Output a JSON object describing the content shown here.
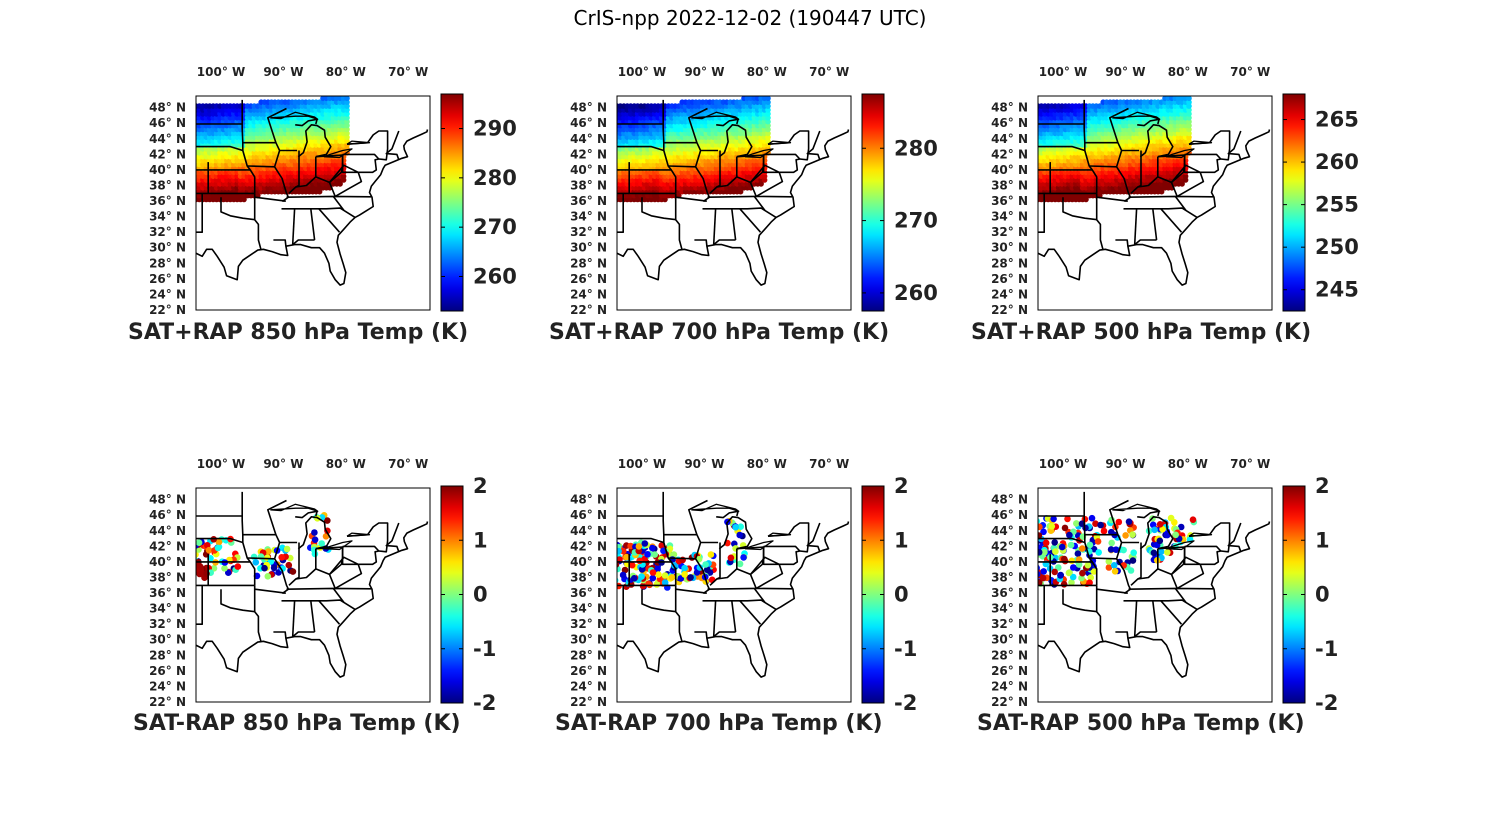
{
  "figure": {
    "title": "CrIS-npp 2022-12-02 (190447 UTC)"
  },
  "map_axes": {
    "lon_ticks": [
      "100° W",
      "90° W",
      "80° W",
      "70° W"
    ],
    "lon_values": [
      -100,
      -90,
      -80,
      -70
    ],
    "lat_ticks": [
      "48° N",
      "46° N",
      "44° N",
      "42° N",
      "40° N",
      "38° N",
      "36° N",
      "34° N",
      "32° N",
      "30° N",
      "28° N",
      "26° N",
      "24° N",
      "22° N"
    ],
    "lat_values": [
      48,
      46,
      44,
      42,
      40,
      38,
      36,
      34,
      32,
      30,
      28,
      26,
      24,
      22
    ],
    "lon_range": [
      -104,
      -66.5
    ],
    "lat_range": [
      22,
      49.5
    ]
  },
  "panels": [
    {
      "caption": "SAT+RAP 850 hPa Temp (K)",
      "colorbar": {
        "min": 253,
        "max": 297,
        "ticks": [
          260,
          270,
          280,
          290
        ],
        "tick_labels": [
          "260",
          "270",
          "280",
          "290"
        ],
        "colormap": "jet"
      },
      "field": "temperature"
    },
    {
      "caption": "SAT+RAP 700 hPa Temp (K)",
      "colorbar": {
        "min": 257.5,
        "max": 287.5,
        "ticks": [
          260,
          270,
          280
        ],
        "tick_labels": [
          "260",
          "270",
          "280"
        ],
        "colormap": "jet"
      },
      "field": "temperature"
    },
    {
      "caption": "SAT+RAP 500 hPa Temp (K)",
      "colorbar": {
        "min": 242.5,
        "max": 268,
        "ticks": [
          245,
          250,
          255,
          260,
          265
        ],
        "tick_labels": [
          "245",
          "250",
          "255",
          "260",
          "265"
        ],
        "colormap": "jet"
      },
      "field": "temperature"
    },
    {
      "caption": "SAT-RAP 850 hPa Temp (K)",
      "colorbar": {
        "min": -2,
        "max": 2,
        "ticks": [
          -2,
          -1,
          0,
          1,
          2
        ],
        "tick_labels": [
          "-2",
          "-1",
          "0",
          "1",
          "2"
        ],
        "colormap": "jet"
      },
      "field": "difference"
    },
    {
      "caption": "SAT-RAP 700 hPa Temp (K)",
      "colorbar": {
        "min": -2,
        "max": 2,
        "ticks": [
          -2,
          -1,
          0,
          1,
          2
        ],
        "tick_labels": [
          "-2",
          "-1",
          "0",
          "1",
          "2"
        ],
        "colormap": "jet"
      },
      "field": "difference"
    },
    {
      "caption": "SAT-RAP 500 hPa Temp (K)",
      "colorbar": {
        "min": -2,
        "max": 2,
        "ticks": [
          -2,
          -1,
          0,
          1,
          2
        ],
        "tick_labels": [
          "-2",
          "-1",
          "0",
          "1",
          "2"
        ],
        "colormap": "jet"
      },
      "field": "difference"
    }
  ],
  "colors": {
    "state_lines": "#000000",
    "frame": "#000000",
    "background": "#ffffff"
  }
}
